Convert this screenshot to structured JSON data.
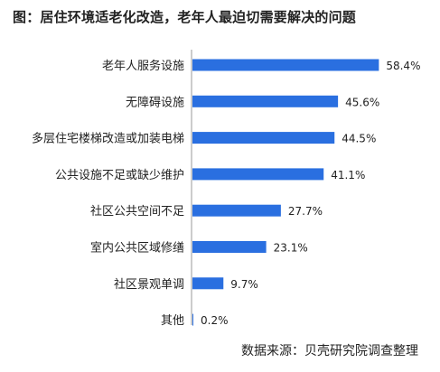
{
  "chart_data": {
    "type": "bar",
    "orientation": "horizontal",
    "title": "图：居住环境适老化改造，老年人最迫切需要解决的问题",
    "categories": [
      "老年人服务设施",
      "无障碍设施",
      "多层住宅楼梯改造或加装电梯",
      "公共设施不足或缺少维护",
      "社区公共空间不足",
      "室内公共区域修缮",
      "社区景观单调",
      "其他"
    ],
    "values": [
      58.4,
      45.6,
      44.5,
      41.1,
      27.7,
      23.1,
      9.7,
      0.2
    ],
    "value_suffix": "%",
    "xlim": [
      0,
      60
    ],
    "grid": false,
    "legend": "none",
    "bar_color": "#2a6fe0"
  },
  "source": "数据来源：贝壳研究院调查整理"
}
